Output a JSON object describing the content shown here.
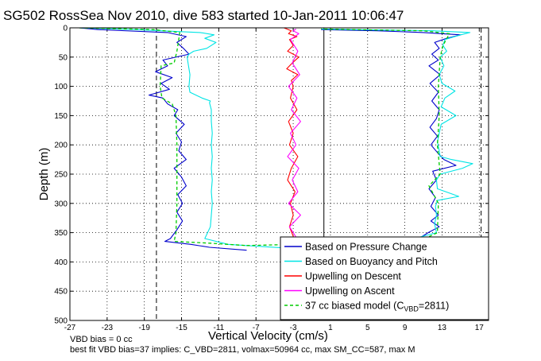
{
  "chart_data": {
    "type": "line",
    "title": "SG502 RossSea Nov 2010, dive 583 started 10-Jan-2011 10:06:47",
    "xlabel": "Vertical Velocity (cm/s)",
    "ylabel": "Depth (m)",
    "xlim": [
      -27,
      18
    ],
    "ylim": [
      0,
      500
    ],
    "y_reversed": true,
    "grid": true,
    "legend_position": "bottom-right",
    "xticks": [
      -27,
      -23,
      -19,
      -15,
      -11,
      -7,
      -3,
      1,
      5,
      9,
      13,
      17
    ],
    "yticks": [
      0,
      50,
      100,
      150,
      200,
      250,
      300,
      350,
      400,
      450,
      500
    ],
    "colors": {
      "pressure": "#0000cc",
      "buoyancy": "#00e5e5",
      "descent": "#ff0000",
      "ascent": "#ff00ff",
      "model": "#00cc00",
      "reference": "#000000"
    },
    "legend": [
      {
        "label": "Based on Pressure Change",
        "color": "#0000cc",
        "style": "solid"
      },
      {
        "label": "Based on Buoyancy and Pitch",
        "color": "#00e5e5",
        "style": "solid"
      },
      {
        "label": "Upwelling on Descent",
        "color": "#ff0000",
        "style": "solid"
      },
      {
        "label": "Upwelling on Ascent",
        "color": "#ff00ff",
        "style": "solid"
      },
      {
        "label_main": "37 cc biased model (C",
        "label_sub": "VBD",
        "label_end": "=2811)",
        "color": "#00cc00",
        "style": "dashed"
      }
    ],
    "reference_lines": [
      {
        "x": -17.7,
        "style": "dashed"
      },
      {
        "x": 0.3,
        "style": "solid"
      },
      {
        "x": 17.2,
        "style": "dashed"
      }
    ],
    "series": [
      {
        "name": "Based on Pressure Change",
        "segments": [
          {
            "depth": [
              0,
              3,
              8,
              15,
              25,
              35,
              45,
              55,
              65,
              75,
              85,
              95,
              105,
              115,
              120,
              130,
              140,
              150,
              165,
              180,
              195,
              210,
              225,
              240,
              255,
              270,
              285,
              300,
              315,
              330,
              345,
              360,
              365,
              370,
              375,
              380
            ],
            "velocity": [
              -26,
              -24,
              -16.5,
              -14.5,
              -15.5,
              -14.8,
              -14.2,
              -17,
              -16.5,
              -17.8,
              -16,
              -17.2,
              -16.3,
              -18.5,
              -17,
              -16.5,
              -15.4,
              -15.8,
              -14.7,
              -15.6,
              -15,
              -15.3,
              -14.5,
              -15.8,
              -15,
              -14.5,
              -15.4,
              -14.9,
              -15.5,
              -14.9,
              -15.5,
              -16.2,
              -16.8,
              -14,
              -12,
              -8
            ]
          },
          {
            "depth": [
              360,
              350,
              340,
              330,
              320,
              305,
              290,
              275,
              260,
              245,
              235,
              225,
              215,
              200,
              185,
              170,
              155,
              140,
              125,
              110,
              95,
              80,
              65,
              55,
              45,
              35,
              25,
              18,
              12,
              8,
              5,
              3
            ],
            "velocity": [
              10.5,
              11.5,
              12.7,
              11.8,
              12.6,
              11.8,
              12.3,
              11.6,
              12.4,
              12,
              14.5,
              13.2,
              12.6,
              11.8,
              12.5,
              11.7,
              12.4,
              12.7,
              11.9,
              12.6,
              11.7,
              12.8,
              11.6,
              12.6,
              11.9,
              12.7,
              12.2,
              13.5,
              15,
              11,
              6,
              0
            ]
          }
        ]
      },
      {
        "name": "Based on Buoyancy and Pitch",
        "segments": [
          {
            "depth": [
              0,
              3,
              8,
              12,
              18,
              25,
              35,
              40,
              45,
              50,
              60,
              80,
              100,
              110,
              120,
              125,
              128,
              140,
              160,
              180,
              200,
              220,
              240,
              260,
              280,
              300,
              320,
              340,
              360,
              370,
              374,
              378,
              382
            ],
            "velocity": [
              -26,
              -20,
              -13,
              -11.5,
              -12.5,
              -11.3,
              -12.3,
              -13.7,
              -14.2,
              -14.4,
              -14.3,
              -14.1,
              -14.2,
              -14.1,
              -12.8,
              -11.9,
              -12,
              -11.8,
              -11.8,
              -11.7,
              -11.8,
              -11.7,
              -11.8,
              -11.7,
              -11.8,
              -11.7,
              -11.8,
              -11.9,
              -12.5,
              -10,
              -6,
              -2,
              0
            ]
          },
          {
            "depth": [
              380,
              370,
              360,
              350,
              335,
              320,
              305,
              295,
              288,
              275,
              260,
              250,
              240,
              232,
              225,
              220,
              210,
              195,
              180,
              165,
              150,
              135,
              120,
              108,
              95,
              80,
              65,
              50,
              40,
              30,
              20,
              12,
              8,
              5,
              2
            ],
            "velocity": [
              -2,
              5,
              10,
              12.4,
              12.2,
              12.4,
              12.3,
              12.5,
              14.8,
              12.5,
              12.4,
              12.8,
              15.2,
              16.3,
              14,
              12.8,
              12.7,
              12.5,
              12.7,
              12.9,
              14.5,
              12.9,
              13.3,
              14.4,
              13,
              12.7,
              13.2,
              12.8,
              13.5,
              13.1,
              13.3,
              15,
              16,
              12,
              0
            ]
          }
        ]
      },
      {
        "name": "Upwelling on Descent",
        "segments": [
          {
            "depth": [
              0,
              5,
              10,
              15,
              20,
              30,
              40,
              50,
              60,
              70,
              80,
              90,
              100,
              120,
              140,
              160,
              180,
              200,
              220,
              240,
              260,
              280,
              300,
              320,
              340,
              360
            ],
            "velocity": [
              -4,
              -3.2,
              -3.5,
              -2.6,
              -3.4,
              -3,
              -3.6,
              -2.4,
              -3.1,
              -3.7,
              -2.5,
              -3.2,
              -3,
              -3.3,
              -2.6,
              -3.5,
              -3,
              -3.4,
              -2.5,
              -3.2,
              -3.6,
              -2.8,
              -3.3,
              -3,
              -3.4,
              -2.9
            ]
          }
        ]
      },
      {
        "name": "Upwelling on Ascent",
        "segments": [
          {
            "depth": [
              360,
              340,
              320,
              300,
              280,
              260,
              240,
              220,
              200,
              180,
              160,
              140,
              120,
              100,
              80,
              60,
              40,
              20,
              10,
              5,
              2
            ],
            "velocity": [
              -2.6,
              -3.4,
              -2.2,
              -3.5,
              -2.5,
              -3.1,
              -2.4,
              -3.6,
              -2.7,
              -3.3,
              -2.2,
              -3.2,
              -2.6,
              -3.5,
              -2.3,
              -3.1,
              -2.5,
              -3.3,
              -2.4,
              -3,
              -2.7
            ]
          }
        ]
      },
      {
        "name": "37 cc biased model (C_VBD=2811)",
        "segments": [
          {
            "depth": [
              0,
              3,
              8,
              20,
              40,
              60,
              65,
              100,
              120,
              130,
              150,
              200,
              250,
              300,
              350,
              365,
              368,
              372
            ],
            "velocity": [
              -26,
              -18,
              -15.2,
              -15.3,
              -15.5,
              -15.8,
              -17.2,
              -17.3,
              -17.1,
              -16,
              -15.6,
              -15.5,
              -15.5,
              -15.5,
              -15.6,
              -15.8,
              -12,
              -8
            ]
          },
          {
            "depth": [
              372,
              365,
              350,
              300,
              270,
              250,
              200,
              150,
              100,
              50,
              30,
              10,
              5,
              2
            ],
            "velocity": [
              -8,
              10.5,
              12.5,
              12.6,
              11.6,
              12.8,
              12.5,
              12.7,
              12.6,
              12.8,
              13.1,
              13.8,
              11,
              0
            ]
          }
        ]
      }
    ]
  },
  "notes": {
    "bias_line": "VBD bias = 0 cc",
    "fit_line": "best fit VBD bias=37 implies: C_VBD=2811, volmax=50964 cc, max SM_CC=587, max M"
  }
}
